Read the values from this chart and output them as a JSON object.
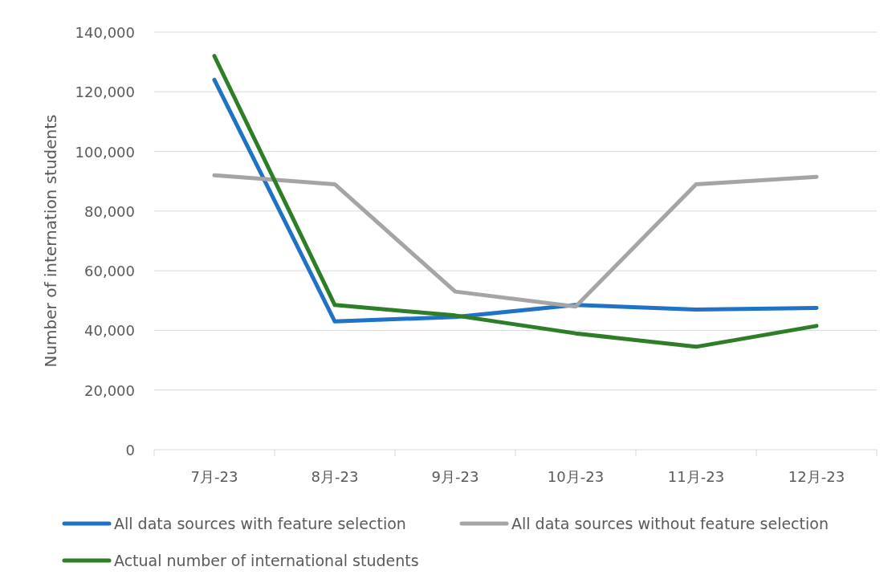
{
  "chart_data": {
    "type": "line",
    "ylabel": "Number of internation students",
    "categories": [
      "7月-23",
      "8月-23",
      "9月-23",
      "10月-23",
      "11月-23",
      "12月-23"
    ],
    "series": [
      {
        "name": "All data sources with feature selection",
        "color": "#1f72c6",
        "values": [
          124000,
          43000,
          44500,
          48500,
          47000,
          47500
        ]
      },
      {
        "name": "All data sources without feature selection",
        "color": "#a5a5a5",
        "values": [
          92000,
          89000,
          53000,
          48000,
          89000,
          91500
        ]
      },
      {
        "name": "Actual number of international students",
        "color": "#2e7d27",
        "values": [
          132000,
          48500,
          45000,
          39000,
          34500,
          41500
        ]
      }
    ],
    "ylim": [
      0,
      140000
    ],
    "yticks": [
      0,
      {
        "value": 20000,
        "label": "20,000"
      },
      {
        "value": 40000,
        "label": "40,000"
      },
      {
        "value": 60000,
        "label": "60,000"
      },
      {
        "value": 80000,
        "label": "80,000"
      },
      {
        "value": 100000,
        "label": "100,000"
      },
      {
        "value": 120000,
        "label": "120,000"
      },
      {
        "value": 140000,
        "label": "140,000"
      }
    ],
    "grid": "y",
    "legend": "bottom",
    "marker": "none",
    "line_style": "solid"
  }
}
